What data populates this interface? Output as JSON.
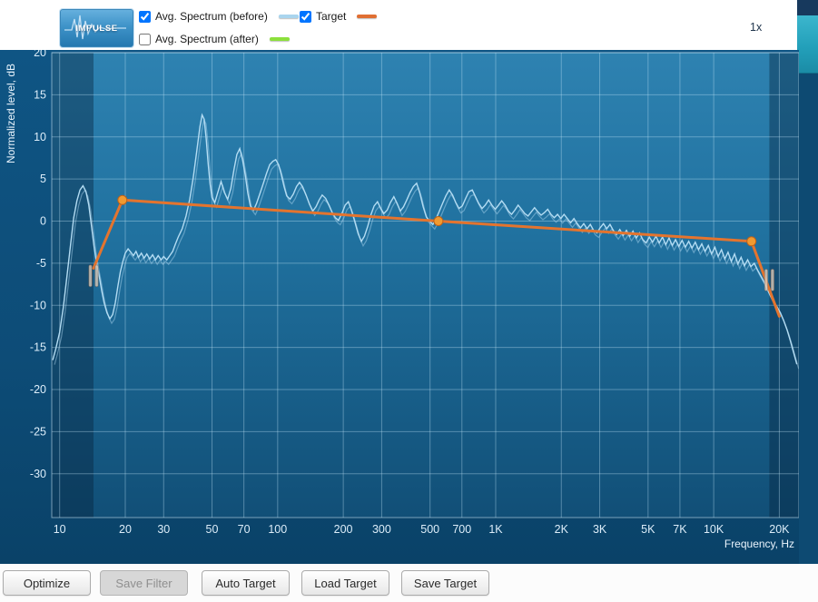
{
  "topbar": {
    "impulse_label": "IMPULSE",
    "zoom_label": "1x",
    "legend": {
      "before": {
        "label": "Avg. Spectrum (before)",
        "checked": true,
        "color": "#a9d5ee"
      },
      "after": {
        "label": "Avg. Spectrum (after)",
        "checked": false,
        "color": "#8ce03c"
      },
      "target": {
        "label": "Target",
        "checked": true,
        "color": "#e06f33"
      }
    }
  },
  "footer": {
    "buttons": [
      {
        "label": "Optimize",
        "enabled": true
      },
      {
        "label": "Save Filter",
        "enabled": false
      },
      {
        "label": "Auto Target",
        "enabled": true
      },
      {
        "label": "Load Target",
        "enabled": true
      },
      {
        "label": "Save Target",
        "enabled": true
      }
    ]
  },
  "chart_data": {
    "type": "line",
    "xlabel": "Frequency, Hz",
    "ylabel": "Normalized level, dB",
    "x_scale": "log",
    "xlim": [
      9.2,
      24600
    ],
    "ylim": [
      -35.2,
      20
    ],
    "x_ticks": [
      10,
      20,
      30,
      50,
      70,
      100,
      200,
      300,
      500,
      700,
      1000,
      2000,
      3000,
      5000,
      7000,
      10000,
      20000
    ],
    "x_tick_labels": [
      "10",
      "20",
      "30",
      "50",
      "70",
      "100",
      "200",
      "300",
      "500",
      "700",
      "1K",
      "2K",
      "3K",
      "5K",
      "7K",
      "10K",
      "20K"
    ],
    "y_ticks": [
      20,
      15,
      10,
      5,
      0,
      -5,
      -10,
      -15,
      -20,
      -25,
      -30
    ],
    "grid": true,
    "shaded_bands": [
      {
        "from": 9.2,
        "to": 14.3
      },
      {
        "from": 18000,
        "to": 24600
      }
    ],
    "handles": [
      {
        "freq": 14.3,
        "db": -6.5
      },
      {
        "freq": 18000,
        "db": -7.0
      }
    ],
    "series": [
      {
        "name": "Avg. Spectrum (before)",
        "color": "#b3dcf3",
        "points": [
          [
            9.3,
            -16.5
          ],
          [
            9.6,
            -15.2
          ],
          [
            10,
            -13.2
          ],
          [
            10.4,
            -10.2
          ],
          [
            10.8,
            -6.6
          ],
          [
            11.2,
            -3
          ],
          [
            11.6,
            0.4
          ],
          [
            12,
            2.4
          ],
          [
            12.4,
            3.7
          ],
          [
            12.8,
            4.2
          ],
          [
            13.2,
            3.5
          ],
          [
            13.6,
            1.9
          ],
          [
            14,
            -0.6
          ],
          [
            14.4,
            -3.1
          ],
          [
            14.8,
            -5.1
          ],
          [
            15.2,
            -6.6
          ],
          [
            15.6,
            -8.3
          ],
          [
            16,
            -9.7
          ],
          [
            16.5,
            -10.9
          ],
          [
            17,
            -11.6
          ],
          [
            17.5,
            -11.1
          ],
          [
            18,
            -9.7
          ],
          [
            18.5,
            -7.7
          ],
          [
            19,
            -6
          ],
          [
            19.5,
            -4.8
          ],
          [
            20,
            -3.8
          ],
          [
            20.6,
            -3.3
          ],
          [
            21.2,
            -3.7
          ],
          [
            21.8,
            -4.1
          ],
          [
            22.4,
            -3.6
          ],
          [
            23,
            -4.3
          ],
          [
            23.7,
            -3.8
          ],
          [
            24.4,
            -4.4
          ],
          [
            25.1,
            -3.9
          ],
          [
            25.9,
            -4.5
          ],
          [
            26.7,
            -4
          ],
          [
            27.5,
            -4.6
          ],
          [
            28.3,
            -4.1
          ],
          [
            29.2,
            -4.6
          ],
          [
            30,
            -4.2
          ],
          [
            31,
            -4.6
          ],
          [
            32,
            -4.1
          ],
          [
            33,
            -3.6
          ],
          [
            34,
            -2.7
          ],
          [
            35,
            -1.9
          ],
          [
            36.5,
            -0.9
          ],
          [
            38,
            0.6
          ],
          [
            39.5,
            2.6
          ],
          [
            41,
            5.2
          ],
          [
            42.5,
            8.2
          ],
          [
            44,
            11.2
          ],
          [
            45,
            12.6
          ],
          [
            46,
            12.1
          ],
          [
            47,
            9.8
          ],
          [
            48,
            6.8
          ],
          [
            49,
            4.4
          ],
          [
            50,
            2.8
          ],
          [
            51.5,
            2.2
          ],
          [
            53,
            3.3
          ],
          [
            55,
            4.7
          ],
          [
            57,
            3.4
          ],
          [
            59,
            2.6
          ],
          [
            61,
            3.9
          ],
          [
            63,
            6.1
          ],
          [
            65,
            7.9
          ],
          [
            67,
            8.6
          ],
          [
            69,
            7.3
          ],
          [
            71,
            5.5
          ],
          [
            73,
            3.3
          ],
          [
            75,
            1.8
          ],
          [
            77.5,
            1.3
          ],
          [
            80,
            2.1
          ],
          [
            83,
            3.3
          ],
          [
            86,
            4.5
          ],
          [
            89,
            5.7
          ],
          [
            92,
            6.7
          ],
          [
            95,
            7.1
          ],
          [
            98,
            7.3
          ],
          [
            101,
            6.7
          ],
          [
            104,
            5.5
          ],
          [
            107,
            4.1
          ],
          [
            110,
            3
          ],
          [
            114,
            2.6
          ],
          [
            118,
            3.2
          ],
          [
            122,
            4.1
          ],
          [
            126,
            4.6
          ],
          [
            130,
            4.1
          ],
          [
            135,
            3.1
          ],
          [
            140,
            2
          ],
          [
            145,
            1.2
          ],
          [
            150,
            1.7
          ],
          [
            155,
            2.5
          ],
          [
            160,
            3.1
          ],
          [
            166,
            2.7
          ],
          [
            172,
            1.9
          ],
          [
            178,
            1
          ],
          [
            184,
            0.4
          ],
          [
            190,
            0.1
          ],
          [
            197,
            0.9
          ],
          [
            204,
            1.9
          ],
          [
            211,
            2.3
          ],
          [
            218,
            1.3
          ],
          [
            226,
            -0.1
          ],
          [
            234,
            -1.5
          ],
          [
            242,
            -2.4
          ],
          [
            250,
            -1.8
          ],
          [
            259,
            -0.6
          ],
          [
            268,
            0.8
          ],
          [
            277,
            1.8
          ],
          [
            287,
            2.3
          ],
          [
            297,
            1.5
          ],
          [
            307,
            0.9
          ],
          [
            318,
            1.3
          ],
          [
            329,
            2.2
          ],
          [
            341,
            2.9
          ],
          [
            353,
            2.1
          ],
          [
            365,
            1.2
          ],
          [
            378,
            1.7
          ],
          [
            391,
            2.5
          ],
          [
            405,
            3.4
          ],
          [
            419,
            4.1
          ],
          [
            434,
            4.5
          ],
          [
            449,
            3.3
          ],
          [
            465,
            1.7
          ],
          [
            481,
            0.5
          ],
          [
            498,
            0
          ],
          [
            515,
            -0.4
          ],
          [
            533,
            0.3
          ],
          [
            552,
            1.2
          ],
          [
            571,
            2.1
          ],
          [
            591,
            3
          ],
          [
            612,
            3.7
          ],
          [
            634,
            3.1
          ],
          [
            656,
            2.2
          ],
          [
            679,
            1.5
          ],
          [
            703,
            1.8
          ],
          [
            728,
            2.7
          ],
          [
            754,
            3.5
          ],
          [
            781,
            3.7
          ],
          [
            808,
            2.9
          ],
          [
            836,
            2.1
          ],
          [
            866,
            1.5
          ],
          [
            896,
            1.9
          ],
          [
            928,
            2.5
          ],
          [
            961,
            1.9
          ],
          [
            995,
            1.4
          ],
          [
            1030,
            1.9
          ],
          [
            1066,
            2.4
          ],
          [
            1104,
            1.9
          ],
          [
            1143,
            1.2
          ],
          [
            1183,
            0.8
          ],
          [
            1225,
            1.3
          ],
          [
            1268,
            1.9
          ],
          [
            1313,
            1.4
          ],
          [
            1359,
            0.9
          ],
          [
            1407,
            0.6
          ],
          [
            1457,
            1.1
          ],
          [
            1508,
            1.6
          ],
          [
            1561,
            1.1
          ],
          [
            1616,
            0.7
          ],
          [
            1673,
            1
          ],
          [
            1732,
            1.4
          ],
          [
            1793,
            0.8
          ],
          [
            1856,
            0.4
          ],
          [
            1921,
            0.8
          ],
          [
            1989,
            0.3
          ],
          [
            2059,
            0.8
          ],
          [
            2132,
            0.3
          ],
          [
            2207,
            -0.2
          ],
          [
            2285,
            0.3
          ],
          [
            2365,
            -0.3
          ],
          [
            2449,
            -0.8
          ],
          [
            2535,
            -0.3
          ],
          [
            2624,
            -0.9
          ],
          [
            2717,
            -0.4
          ],
          [
            2813,
            -1.1
          ],
          [
            2912,
            -1.4
          ],
          [
            3014,
            -0.8
          ],
          [
            3121,
            -0.3
          ],
          [
            3231,
            -0.9
          ],
          [
            3345,
            -0.4
          ],
          [
            3463,
            -1.1
          ],
          [
            3585,
            -1.6
          ],
          [
            3711,
            -1
          ],
          [
            3842,
            -1.7
          ],
          [
            3977,
            -1.1
          ],
          [
            4117,
            -1.8
          ],
          [
            4262,
            -1.2
          ],
          [
            4412,
            -2
          ],
          [
            4568,
            -1.4
          ],
          [
            4729,
            -2.2
          ],
          [
            4895,
            -2.6
          ],
          [
            5068,
            -1.9
          ],
          [
            5246,
            -2.5
          ],
          [
            5431,
            -1.8
          ],
          [
            5622,
            -2.6
          ],
          [
            5820,
            -1.9
          ],
          [
            6025,
            -2.8
          ],
          [
            6237,
            -2
          ],
          [
            6457,
            -2.9
          ],
          [
            6684,
            -2.2
          ],
          [
            6920,
            -3
          ],
          [
            7164,
            -2.3
          ],
          [
            7416,
            -3.1
          ],
          [
            7677,
            -2.4
          ],
          [
            7947,
            -3.2
          ],
          [
            8227,
            -2.5
          ],
          [
            8517,
            -3.4
          ],
          [
            8817,
            -2.7
          ],
          [
            9128,
            -3.6
          ],
          [
            9449,
            -2.9
          ],
          [
            9782,
            -3.9
          ],
          [
            10127,
            -3.1
          ],
          [
            10483,
            -4.2
          ],
          [
            10853,
            -3.4
          ],
          [
            11235,
            -4.5
          ],
          [
            11631,
            -3.7
          ],
          [
            12040,
            -4.8
          ],
          [
            12464,
            -3.9
          ],
          [
            12903,
            -5.1
          ],
          [
            13358,
            -4.3
          ],
          [
            13828,
            -5.3
          ],
          [
            14315,
            -4.6
          ],
          [
            14820,
            -5.4
          ],
          [
            15342,
            -5
          ],
          [
            15882,
            -5.8
          ],
          [
            16441,
            -6.5
          ],
          [
            17020,
            -7.2
          ],
          [
            17620,
            -8.1
          ],
          [
            18240,
            -8.9
          ],
          [
            18883,
            -9.6
          ],
          [
            19548,
            -10.2
          ],
          [
            20236,
            -10.9
          ],
          [
            20949,
            -11.8
          ],
          [
            21687,
            -12.9
          ],
          [
            22451,
            -14.2
          ],
          [
            23242,
            -15.6
          ],
          [
            24060,
            -17
          ]
        ]
      },
      {
        "name": "Target",
        "color": "#e4742e",
        "points": [
          [
            14.3,
            -5.6
          ],
          [
            19.4,
            2.5
          ],
          [
            546,
            0
          ],
          [
            14900,
            -2.4
          ],
          [
            20000,
            -11.3
          ]
        ],
        "control_points": [
          [
            19.4,
            2.5
          ],
          [
            546,
            0
          ],
          [
            14900,
            -2.4
          ]
        ]
      }
    ]
  }
}
